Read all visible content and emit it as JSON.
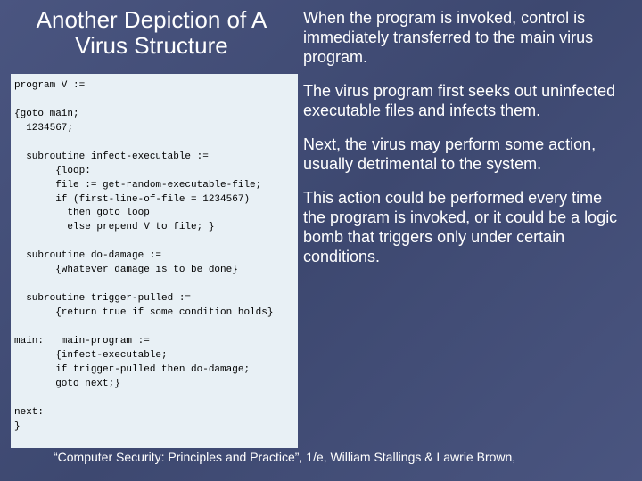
{
  "slide": {
    "title": "Another Depiction of A Virus Structure",
    "background_gradient": [
      "#4a5580",
      "#3d4870",
      "#4a5580"
    ],
    "title_color": "#ffffff",
    "title_fontsize": 26,
    "code_block": {
      "background_color": "#e8f0f5",
      "text_color": "#000000",
      "font_family": "Courier New",
      "fontsize": 11,
      "text": "program V :=\n\n{goto main;\n  1234567;\n\n  subroutine infect-executable :=\n       {loop:\n       file := get-random-executable-file;\n       if (first-line-of-file = 1234567)\n         then goto loop\n         else prepend V to file; }\n\n  subroutine do-damage :=\n       {whatever damage is to be done}\n\n  subroutine trigger-pulled :=\n       {return true if some condition holds}\n\nmain:   main-program :=\n       {infect-executable;\n       if trigger-pulled then do-damage;\n       goto next;}\n\nnext:\n}"
    },
    "paragraphs": [
      "When the program is invoked, control is immediately transferred to the main virus program.",
      "The virus program first seeks out uninfected executable files and infects them.",
      "Next, the virus may perform some action, usually detrimental to the system.",
      "This action could be performed every time the program is invoked, or it could be a logic bomb that triggers only under certain conditions."
    ],
    "paragraph_color": "#ffffff",
    "paragraph_fontsize": 18,
    "citation": "“Computer Security: Principles and Practice”, 1/e, William Stallings & Lawrie Brown,",
    "citation_color": "#ffffff",
    "citation_fontsize": 14
  }
}
